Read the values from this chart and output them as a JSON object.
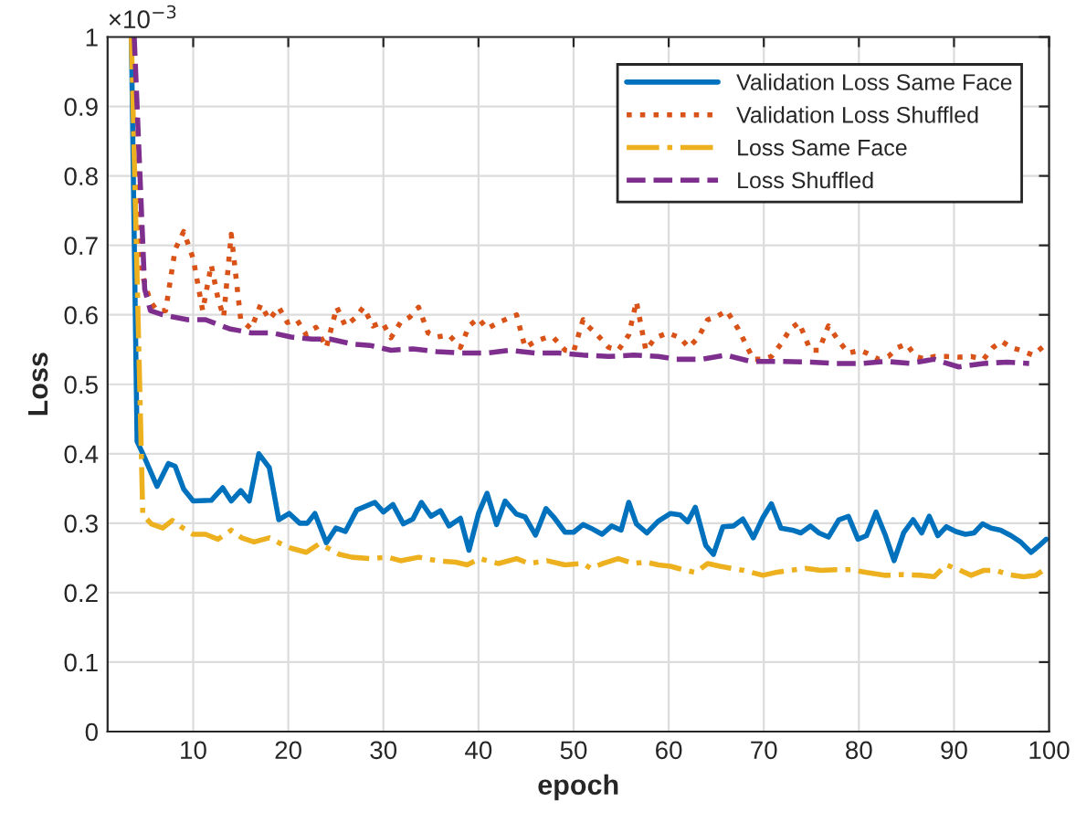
{
  "chart_data": {
    "type": "line",
    "xlabel": "epoch",
    "ylabel": "Loss",
    "annotations": [
      "×10$^{−3}$"
    ],
    "xlim": [
      1,
      100
    ],
    "ylim": [
      0,
      1
    ],
    "xticks": [
      10,
      20,
      30,
      40,
      50,
      60,
      70,
      80,
      90,
      100
    ],
    "yticks": [
      0,
      0.1,
      0.2,
      0.3,
      0.4,
      0.5,
      0.6,
      0.7,
      0.8,
      0.9,
      1
    ],
    "grid": true,
    "legend": "top right",
    "series": [
      {
        "name": "Validation Loss Same Face",
        "color": "#0072bd",
        "line_style": "solid",
        "x": [
          3.5,
          4.1,
          4.9,
          6.2,
          7.4,
          8.1,
          9,
          10,
          11.9,
          13.1,
          14,
          15,
          15.9,
          16.9,
          18,
          19,
          20.1,
          21.2,
          22,
          22.8,
          24,
          25,
          26,
          27.2,
          29.1,
          30,
          31,
          32.1,
          33.1,
          34,
          35,
          36,
          36.9,
          38.1,
          39,
          40,
          40.9,
          41.9,
          42.8,
          44,
          44.9,
          46,
          47.1,
          47.9,
          49.1,
          50,
          51,
          51.8,
          53,
          54,
          55,
          55.8,
          56.6,
          57.7,
          58.9,
          60.2,
          61.2,
          62,
          62.8,
          63.9,
          64.7,
          65.7,
          66.8,
          67.8,
          68.9,
          69.9,
          70.8,
          71.8,
          73,
          73.9,
          74.9,
          75.8,
          76.8,
          77.9,
          78.9,
          79.9,
          80.8,
          81.8,
          82.8,
          83.7,
          84.7,
          85.7,
          86.6,
          87.4,
          88.3,
          89.2,
          90.2,
          91.2,
          92.1,
          93,
          93.9,
          94.9,
          96,
          97,
          98.1,
          98.9,
          99.7
        ],
        "values": [
          1.0,
          0.418,
          0.394,
          0.353,
          0.386,
          0.382,
          0.349,
          0.332,
          0.333,
          0.351,
          0.332,
          0.347,
          0.332,
          0.4,
          0.38,
          0.305,
          0.314,
          0.3,
          0.3,
          0.314,
          0.272,
          0.293,
          0.288,
          0.319,
          0.33,
          0.316,
          0.327,
          0.299,
          0.306,
          0.33,
          0.31,
          0.318,
          0.296,
          0.307,
          0.261,
          0.314,
          0.343,
          0.298,
          0.332,
          0.313,
          0.309,
          0.283,
          0.321,
          0.309,
          0.287,
          0.287,
          0.298,
          0.293,
          0.284,
          0.296,
          0.29,
          0.33,
          0.299,
          0.286,
          0.303,
          0.314,
          0.312,
          0.302,
          0.323,
          0.268,
          0.255,
          0.295,
          0.296,
          0.306,
          0.279,
          0.308,
          0.328,
          0.293,
          0.29,
          0.286,
          0.296,
          0.286,
          0.28,
          0.305,
          0.31,
          0.277,
          0.282,
          0.316,
          0.282,
          0.246,
          0.286,
          0.305,
          0.286,
          0.31,
          0.282,
          0.295,
          0.288,
          0.284,
          0.286,
          0.299,
          0.293,
          0.29,
          0.282,
          0.273,
          0.258,
          0.267,
          0.277
        ]
      },
      {
        "name": "Validation Loss Shuffled",
        "color": "#d95319",
        "line_style": "dotted",
        "x": [
          3.5,
          4.6,
          5.5,
          6.2,
          7.1,
          8.1,
          9,
          10,
          11,
          11.9,
          12.6,
          13.2,
          14,
          15,
          16.1,
          17.1,
          18,
          19,
          19.9,
          20.9,
          21.9,
          22.9,
          24,
          25.1,
          26,
          27,
          27.9,
          28.9,
          29.9,
          30.8,
          31.8,
          32.8,
          33.7,
          34.7,
          35.6,
          36.9,
          38.1,
          39,
          40,
          40.9,
          42.1,
          44,
          44.9,
          46,
          47.1,
          47.9,
          49.1,
          50,
          51,
          51.5,
          52.5,
          53.7,
          54.7,
          55.8,
          56.6,
          57.6,
          58.6,
          59.9,
          61.2,
          62.1,
          63.1,
          64.1,
          65,
          66.1,
          67.3,
          68.9,
          69.9,
          70.8,
          71.8,
          72.8,
          73.7,
          74.9,
          75.8,
          76.8,
          77.9,
          78.9,
          80.1,
          80.8,
          82.1,
          83.1,
          84.1,
          85,
          86,
          87,
          87.9,
          89.2,
          90.5,
          91.8,
          93.1,
          94.1,
          95,
          96,
          97,
          98.3,
          99.7
        ],
        "values": [
          1.0,
          0.659,
          0.619,
          0.606,
          0.606,
          0.694,
          0.72,
          0.681,
          0.606,
          0.672,
          0.624,
          0.597,
          0.716,
          0.593,
          0.58,
          0.615,
          0.593,
          0.611,
          0.589,
          0.593,
          0.571,
          0.582,
          0.553,
          0.611,
          0.584,
          0.595,
          0.611,
          0.584,
          0.589,
          0.567,
          0.589,
          0.597,
          0.611,
          0.574,
          0.568,
          0.571,
          0.553,
          0.584,
          0.595,
          0.58,
          0.589,
          0.6,
          0.553,
          0.562,
          0.567,
          0.567,
          0.549,
          0.547,
          0.593,
          0.584,
          0.571,
          0.553,
          0.549,
          0.571,
          0.619,
          0.549,
          0.567,
          0.574,
          0.567,
          0.553,
          0.567,
          0.593,
          0.597,
          0.606,
          0.58,
          0.536,
          0.536,
          0.54,
          0.558,
          0.58,
          0.589,
          0.549,
          0.549,
          0.584,
          0.562,
          0.545,
          0.549,
          0.545,
          0.536,
          0.54,
          0.553,
          0.558,
          0.54,
          0.536,
          0.54,
          0.54,
          0.539,
          0.54,
          0.536,
          0.553,
          0.562,
          0.553,
          0.549,
          0.542,
          0.558
        ]
      },
      {
        "name": "Loss Same Face",
        "color": "#edb120",
        "line_style": "dashdot",
        "x": [
          3.5,
          4.7,
          5.6,
          6.8,
          7.8,
          8.7,
          10,
          11.3,
          12.6,
          14,
          15.1,
          16.4,
          18,
          19.3,
          20.3,
          21.9,
          23.2,
          24.2,
          25.4,
          26.7,
          28.6,
          30.5,
          31.8,
          33.7,
          35.6,
          37.6,
          38.8,
          40.1,
          42.1,
          44,
          45.3,
          47.2,
          49.1,
          51,
          51.8,
          53.1,
          54.7,
          56.3,
          57.6,
          58.9,
          60.2,
          61.5,
          62.8,
          64.1,
          65.4,
          66.6,
          67.9,
          69.9,
          71.2,
          72.8,
          74.4,
          76,
          77.6,
          79.2,
          80.8,
          82.8,
          84.7,
          86.6,
          87.9,
          89.2,
          90.5,
          91.8,
          93.1,
          94.4,
          95.7,
          97.3,
          98.6,
          99.7
        ],
        "values": [
          1.0,
          0.312,
          0.299,
          0.293,
          0.304,
          0.295,
          0.284,
          0.284,
          0.277,
          0.29,
          0.279,
          0.273,
          0.279,
          0.27,
          0.264,
          0.258,
          0.27,
          0.264,
          0.255,
          0.251,
          0.249,
          0.251,
          0.246,
          0.251,
          0.246,
          0.244,
          0.24,
          0.249,
          0.242,
          0.249,
          0.242,
          0.246,
          0.24,
          0.242,
          0.235,
          0.242,
          0.249,
          0.242,
          0.244,
          0.24,
          0.238,
          0.233,
          0.229,
          0.242,
          0.238,
          0.235,
          0.232,
          0.225,
          0.229,
          0.232,
          0.235,
          0.232,
          0.233,
          0.233,
          0.229,
          0.225,
          0.226,
          0.225,
          0.223,
          0.24,
          0.233,
          0.225,
          0.232,
          0.232,
          0.226,
          0.223,
          0.225,
          0.235
        ]
      },
      {
        "name": "Loss Shuffled",
        "color": "#7e2f8e",
        "line_style": "dashed",
        "x": [
          3.8,
          4.9,
          5.5,
          6.8,
          9.4,
          11.3,
          13.8,
          16.1,
          18.3,
          20.3,
          22.5,
          24.4,
          26.7,
          28.6,
          30.8,
          33.1,
          35.6,
          38.2,
          40.8,
          43.3,
          45.9,
          48.5,
          51,
          53.7,
          56.3,
          58.9,
          60.8,
          63.4,
          66,
          68.6,
          71.8,
          75,
          77.6,
          80.2,
          82.8,
          85.4,
          87.9,
          90.5,
          93.1,
          95.6,
          97.9
        ],
        "values": [
          1.0,
          0.637,
          0.606,
          0.6,
          0.593,
          0.593,
          0.58,
          0.574,
          0.574,
          0.568,
          0.565,
          0.565,
          0.558,
          0.556,
          0.549,
          0.551,
          0.547,
          0.545,
          0.545,
          0.549,
          0.545,
          0.545,
          0.542,
          0.54,
          0.542,
          0.54,
          0.536,
          0.536,
          0.542,
          0.533,
          0.533,
          0.532,
          0.53,
          0.53,
          0.533,
          0.53,
          0.536,
          0.525,
          0.53,
          0.532,
          0.53
        ]
      }
    ]
  }
}
